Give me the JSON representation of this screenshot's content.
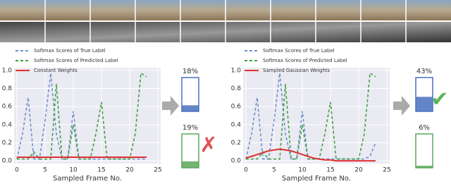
{
  "chart_data": [
    {
      "type": "line",
      "xlabel": "Sampled Frame No.",
      "x": [
        0,
        1,
        2,
        3,
        4,
        5,
        6,
        7,
        8,
        9,
        10,
        11,
        12,
        13,
        14,
        15,
        16,
        17,
        18,
        19,
        20,
        21,
        22,
        23
      ],
      "xlim": [
        -0.5,
        25.5
      ],
      "xticks": [
        0,
        5,
        10,
        15,
        20,
        25
      ],
      "ylim": [
        -0.03,
        1.03
      ],
      "yticks": [
        {
          "value": 0,
          "label": "0.0"
        },
        0.2,
        0.4,
        0.6,
        0.8,
        {
          "value": 1,
          "label": "1.0"
        }
      ],
      "grid": true,
      "series": [
        {
          "name": "Softmax Scores of True Label",
          "color": "#6f8fd0",
          "linestyle": "dashed",
          "values": [
            0.02,
            0.3,
            0.7,
            0.02,
            0.02,
            0.45,
            0.97,
            0.3,
            0.02,
            0.02,
            0.55,
            0.02,
            0.02,
            0.02,
            0.02,
            0.02,
            0.02,
            0.02,
            0.02,
            0.02,
            0.02,
            0.02,
            0.02,
            0.02
          ]
        },
        {
          "name": "Softmax Scores of Predicted Label",
          "color": "#3ea03e",
          "linestyle": "dashed",
          "values": [
            0.02,
            0.02,
            0.02,
            0.1,
            0.02,
            0.02,
            0.02,
            0.85,
            0.02,
            0.02,
            0.4,
            0.02,
            0.02,
            0.02,
            0.3,
            0.65,
            0.02,
            0.02,
            0.02,
            0.02,
            0.02,
            0.3,
            0.97,
            0.93
          ]
        },
        {
          "name": "Constant Weights",
          "color": "#e03030",
          "linestyle": "solid",
          "values": [
            0.04,
            0.04,
            0.04,
            0.04,
            0.04,
            0.04,
            0.04,
            0.04,
            0.04,
            0.04,
            0.04,
            0.04,
            0.04,
            0.04,
            0.04,
            0.04,
            0.04,
            0.04,
            0.04,
            0.04,
            0.04,
            0.04,
            0.04,
            0.04
          ]
        }
      ]
    },
    {
      "type": "gauge",
      "ylim": [
        0,
        100
      ],
      "values": [
        18,
        19
      ],
      "value_labels": [
        "18%",
        "19%"
      ],
      "colors": [
        "#4a70c0",
        "#5aa85a"
      ]
    },
    {
      "type": "line",
      "xlabel": "Sampled Frame No.",
      "x": [
        0,
        1,
        2,
        3,
        4,
        5,
        6,
        7,
        8,
        9,
        10,
        11,
        12,
        13,
        14,
        15,
        16,
        17,
        18,
        19,
        20,
        21,
        22,
        23
      ],
      "xlim": [
        -0.5,
        25.5
      ],
      "xticks": [
        0,
        5,
        10,
        15,
        20,
        25
      ],
      "ylim": [
        -0.03,
        1.03
      ],
      "yticks": [
        {
          "value": 0,
          "label": "0.0"
        },
        0.2,
        0.4,
        0.6,
        0.8,
        {
          "value": 1,
          "label": "1.0"
        }
      ],
      "grid": true,
      "series": [
        {
          "name": "Softmax Scores of True Label",
          "color": "#6f8fd0",
          "linestyle": "dashed",
          "values": [
            0.02,
            0.3,
            0.7,
            0.02,
            0.02,
            0.45,
            0.97,
            0.3,
            0.02,
            0.02,
            0.55,
            0.02,
            0.02,
            0.02,
            0.02,
            0.02,
            0.02,
            0.02,
            0.02,
            0.02,
            0.02,
            0.02,
            0.05,
            0.2
          ]
        },
        {
          "name": "Softmax Scores of Predicted Label",
          "color": "#3ea03e",
          "linestyle": "dashed",
          "values": [
            0.02,
            0.02,
            0.02,
            0.1,
            0.02,
            0.02,
            0.02,
            0.85,
            0.02,
            0.02,
            0.4,
            0.02,
            0.02,
            0.02,
            0.3,
            0.65,
            0.02,
            0.02,
            0.02,
            0.02,
            0.02,
            0.3,
            0.97,
            0.93
          ]
        },
        {
          "name": "Sampled Gaussian Weights",
          "color": "#e03030",
          "linestyle": "solid",
          "values": [
            0.03,
            0.05,
            0.07,
            0.09,
            0.11,
            0.12,
            0.13,
            0.12,
            0.11,
            0.09,
            0.07,
            0.05,
            0.03,
            0.02,
            0.01,
            0.01,
            0.0,
            0.0,
            0.0,
            0.0,
            0.0,
            0.0,
            0.0,
            0.0
          ]
        }
      ]
    },
    {
      "type": "gauge",
      "ylim": [
        0,
        100
      ],
      "values": [
        43,
        6
      ],
      "value_labels": [
        "43%",
        "6%"
      ],
      "colors": [
        "#4a70c0",
        "#5aa85a"
      ]
    }
  ]
}
